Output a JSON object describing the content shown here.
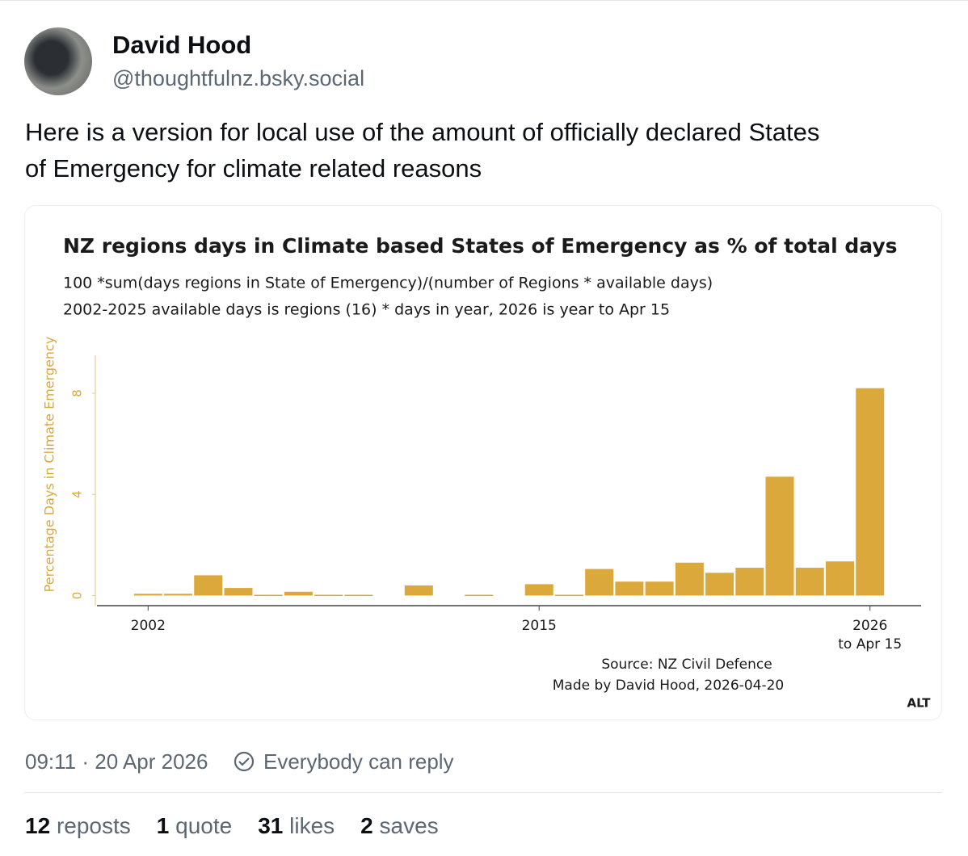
{
  "post": {
    "author": "David Hood",
    "handle": "@thoughtfulnz.bsky.social",
    "text_lines": [
      "Here is a version for local use of the amount of officially declared States",
      "of Emergency for climate related reasons"
    ],
    "timestamp": "09:11 · 20 Apr 2026",
    "reply_setting": "Everybody can reply",
    "alt_badge": "ALT",
    "stats": [
      {
        "count": 12,
        "label": "reposts"
      },
      {
        "count": 1,
        "label": "quote"
      },
      {
        "count": 31,
        "label": "likes"
      },
      {
        "count": 2,
        "label": "saves"
      }
    ]
  },
  "chart_data": {
    "type": "bar",
    "title": "NZ regions days in Climate based States of Emergency as % of total days",
    "subtitle_lines": [
      "100 *sum(days regions in State of Emergency)/(number of Regions * available days)",
      "2002-2025 available days is regions (16) * days in year, 2026 is year to Apr 15"
    ],
    "ylabel": "Percentage Days in Climate Emergency",
    "x": [
      2002,
      2003,
      2004,
      2005,
      2006,
      2007,
      2008,
      2009,
      2010,
      2011,
      2012,
      2013,
      2014,
      2015,
      2016,
      2017,
      2018,
      2019,
      2020,
      2021,
      2022,
      2023,
      2024,
      2025,
      2026
    ],
    "values": [
      0.07,
      0.07,
      0.8,
      0.3,
      0.03,
      0.15,
      0.03,
      0.03,
      0,
      0.4,
      0,
      0.03,
      0,
      0.45,
      0.03,
      1.05,
      0.55,
      0.55,
      1.3,
      0.9,
      1.1,
      4.7,
      1.1,
      1.35,
      8.2
    ],
    "color": "#dba83b",
    "xlim": [
      2000.3,
      2027.7
    ],
    "xticks": [
      2002,
      2015,
      2026
    ],
    "xtick_note": "to Apr 15",
    "ylim": [
      -0.4,
      9.5
    ],
    "yticks": [
      0,
      4,
      8
    ],
    "annotations": [
      "Source: NZ Civil Defence",
      "Made by David Hood, 2026-04-20"
    ]
  }
}
